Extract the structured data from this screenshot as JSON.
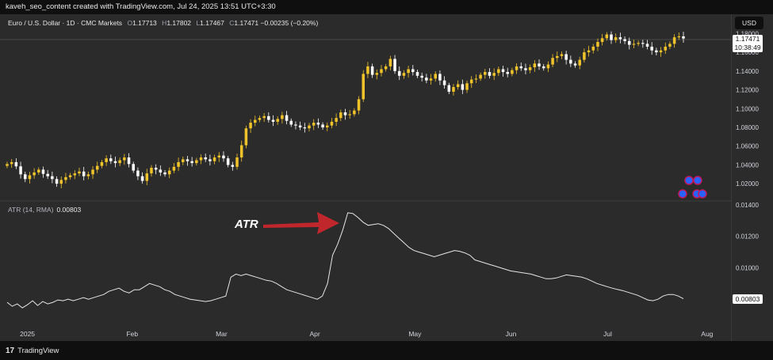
{
  "header": {
    "attribution": "kaveh_seo_content created with TradingView.com, Jul 24, 2025 13:51 UTC+3:30"
  },
  "legend": {
    "symbol": "Euro / U.S. Dollar · 1D · CMC Markets",
    "open_label": "O",
    "open": "1.17713",
    "high_label": "H",
    "high": "1.17802",
    "low_label": "L",
    "low": "1.17467",
    "close_label": "C",
    "close": "1.17471",
    "change": "−0.00235 (−0.20%)"
  },
  "currency": "USD",
  "last_price": {
    "price": "1.17471",
    "countdown": "10:38:49"
  },
  "atr_legend": {
    "label": "ATR (14, RMA)",
    "value": "0.00803"
  },
  "atr_last": "0.00803",
  "annotation": {
    "text": "ATR",
    "color": "#c0272d"
  },
  "footer": {
    "brand": "TradingView"
  },
  "colors": {
    "up": "#f0c32b",
    "down": "#ffffff",
    "atr_line": "#e6e6e6",
    "background": "#2b2b2b"
  },
  "chart_data": [
    {
      "type": "candlestick",
      "title": "Euro / U.S. Dollar · 1D · CMC Markets",
      "x_tick_labels": [
        "2025",
        "Feb",
        "Mar",
        "Apr",
        "May",
        "Jun",
        "Jul",
        "Aug"
      ],
      "y_tick_labels": [
        "1.18000",
        "1.16000",
        "1.14000",
        "1.12000",
        "1.10000",
        "1.08000",
        "1.06000",
        "1.04000",
        "1.02000"
      ],
      "ylim": [
        1.005,
        1.182
      ],
      "close": [
        1.041,
        1.043,
        1.0385,
        1.03,
        1.025,
        1.029,
        1.032,
        1.035,
        1.0305,
        1.028,
        1.025,
        1.02,
        1.024,
        1.027,
        1.029,
        1.031,
        1.033,
        1.028,
        1.03,
        1.035,
        1.039,
        1.043,
        1.047,
        1.044,
        1.042,
        1.045,
        1.048,
        1.041,
        1.034,
        1.028,
        1.023,
        1.031,
        1.037,
        1.035,
        1.032,
        1.03,
        1.034,
        1.038,
        1.043,
        1.046,
        1.044,
        1.042,
        1.045,
        1.048,
        1.046,
        1.044,
        1.048,
        1.05,
        1.047,
        1.04,
        1.038,
        1.048,
        1.061,
        1.079,
        1.085,
        1.088,
        1.09,
        1.092,
        1.088,
        1.086,
        1.089,
        1.093,
        1.087,
        1.083,
        1.082,
        1.08,
        1.079,
        1.082,
        1.085,
        1.083,
        1.08,
        1.082,
        1.086,
        1.09,
        1.096,
        1.093,
        1.094,
        1.098,
        1.11,
        1.137,
        1.145,
        1.136,
        1.138,
        1.142,
        1.145,
        1.153,
        1.14,
        1.135,
        1.138,
        1.142,
        1.139,
        1.135,
        1.133,
        1.13,
        1.132,
        1.137,
        1.13,
        1.125,
        1.118,
        1.123,
        1.126,
        1.12,
        1.127,
        1.131,
        1.132,
        1.136,
        1.139,
        1.135,
        1.138,
        1.142,
        1.139,
        1.137,
        1.141,
        1.145,
        1.143,
        1.141,
        1.144,
        1.148,
        1.145,
        1.143,
        1.147,
        1.154,
        1.156,
        1.158,
        1.152,
        1.148,
        1.146,
        1.152,
        1.16,
        1.162,
        1.166,
        1.171,
        1.175,
        1.179,
        1.173,
        1.176,
        1.174,
        1.172,
        1.168,
        1.169,
        1.17,
        1.169,
        1.166,
        1.162,
        1.16,
        1.162,
        1.166,
        1.169,
        1.176,
        1.177,
        1.1747
      ]
    },
    {
      "type": "line",
      "series_label": "ATR (14, RMA)",
      "y_tick_labels": [
        "0.01400",
        "0.01200",
        "0.01000",
        "0.00800"
      ],
      "ylim": [
        0.0069,
        0.0142
      ],
      "values": [
        0.0078,
        0.00755,
        0.0077,
        0.00745,
        0.00765,
        0.0079,
        0.0076,
        0.00785,
        0.0077,
        0.0078,
        0.00795,
        0.0079,
        0.008,
        0.0079,
        0.008,
        0.0081,
        0.008,
        0.0081,
        0.0082,
        0.0083,
        0.0085,
        0.0086,
        0.0087,
        0.0085,
        0.0084,
        0.0086,
        0.0086,
        0.0088,
        0.009,
        0.0089,
        0.0088,
        0.0086,
        0.0085,
        0.0083,
        0.0082,
        0.0081,
        0.008,
        0.00795,
        0.0079,
        0.00785,
        0.0079,
        0.008,
        0.0081,
        0.0082,
        0.0094,
        0.0096,
        0.0095,
        0.0096,
        0.0095,
        0.0094,
        0.0093,
        0.0092,
        0.00915,
        0.009,
        0.0088,
        0.0086,
        0.0085,
        0.0084,
        0.0083,
        0.0082,
        0.0081,
        0.008,
        0.0082,
        0.009,
        0.0108,
        0.0115,
        0.0124,
        0.0135,
        0.01345,
        0.0132,
        0.0129,
        0.0127,
        0.01275,
        0.0128,
        0.0127,
        0.0125,
        0.0122,
        0.0119,
        0.0116,
        0.0113,
        0.0111,
        0.011,
        0.0109,
        0.0108,
        0.0107,
        0.0108,
        0.0109,
        0.011,
        0.0111,
        0.01105,
        0.01095,
        0.0108,
        0.0105,
        0.0104,
        0.0103,
        0.0102,
        0.0101,
        0.01,
        0.0099,
        0.0098,
        0.00975,
        0.0097,
        0.00965,
        0.0096,
        0.0095,
        0.0094,
        0.0093,
        0.0093,
        0.00935,
        0.00945,
        0.00955,
        0.0095,
        0.00945,
        0.0094,
        0.0093,
        0.00915,
        0.009,
        0.0089,
        0.0088,
        0.0087,
        0.00862,
        0.00855,
        0.00845,
        0.00835,
        0.00825,
        0.0081,
        0.00795,
        0.0079,
        0.008,
        0.0082,
        0.0083,
        0.0083,
        0.0082,
        0.00803
      ]
    }
  ]
}
